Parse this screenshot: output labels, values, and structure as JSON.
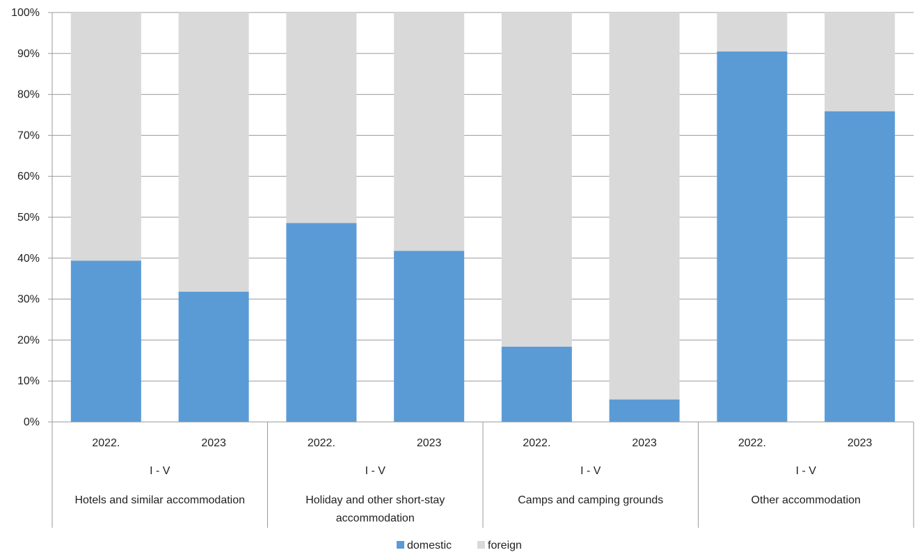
{
  "chart_data": {
    "type": "bar",
    "stacked": true,
    "percent": true,
    "groups": [
      {
        "label": "Hotels and similar accommodation",
        "period": "I - V",
        "label_lines": [
          "Hotels and similar accommodation"
        ]
      },
      {
        "label": "Holiday and other short-stay accommodation",
        "period": "I - V",
        "label_lines": [
          "Holiday and other short-stay",
          "accommodation"
        ]
      },
      {
        "label": "Camps and camping grounds",
        "period": "I - V",
        "label_lines": [
          "Camps and camping grounds"
        ]
      },
      {
        "label": "Other accommodation",
        "period": "I - V",
        "label_lines": [
          "Other accommodation"
        ]
      }
    ],
    "categories": [
      "2022.",
      "2023",
      "2022.",
      "2023",
      "2022.",
      "2023",
      "2022.",
      "2023"
    ],
    "series": [
      {
        "name": "domestic",
        "color": "#5b9bd5",
        "values": [
          39.4,
          31.8,
          48.6,
          41.8,
          18.4,
          5.5,
          90.5,
          75.9
        ]
      },
      {
        "name": "foreign",
        "color": "#d9d9d9",
        "values": [
          60.6,
          68.2,
          51.4,
          58.2,
          81.6,
          94.5,
          9.5,
          24.1
        ]
      }
    ],
    "ylim": [
      0,
      100
    ],
    "yticks": [
      "0%",
      "10%",
      "20%",
      "30%",
      "40%",
      "50%",
      "60%",
      "70%",
      "80%",
      "90%",
      "100%"
    ],
    "grid": true,
    "legend": "bottom-center"
  }
}
